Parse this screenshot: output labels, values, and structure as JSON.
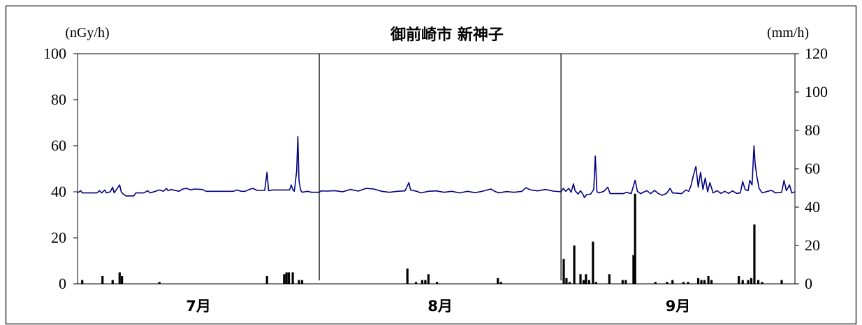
{
  "chart_data": {
    "type": "line",
    "title": "御前崎市 新神子",
    "left_unit": "(nGy/h)",
    "right_unit": "(mm/h)",
    "ylim_left": [
      0,
      100
    ],
    "ylim_right": [
      0,
      120
    ],
    "left_ticks": [
      "0",
      "20",
      "40",
      "60",
      "80",
      "100"
    ],
    "right_ticks": [
      "0",
      "20",
      "40",
      "60",
      "80",
      "100",
      "120"
    ],
    "x_range_days": [
      0,
      92
    ],
    "month_boundaries": [
      31,
      62
    ],
    "months": [
      "7月",
      "8月",
      "9月"
    ],
    "grid": false,
    "colors": {
      "dose_line": "#000080",
      "rain_bars": "#000000"
    },
    "series": [
      {
        "axis": "left",
        "type": "line",
        "points": [
          [
            0.0,
            39.5
          ],
          [
            0.4,
            40.5
          ],
          [
            0.6,
            39.5
          ],
          [
            2.5,
            39.5
          ],
          [
            2.8,
            40.5
          ],
          [
            3.1,
            39.5
          ],
          [
            3.5,
            40.8
          ],
          [
            3.7,
            39.5
          ],
          [
            4.2,
            40.0
          ],
          [
            4.5,
            42.0
          ],
          [
            4.7,
            39.5
          ],
          [
            5.0,
            41.0
          ],
          [
            5.4,
            43.0
          ],
          [
            5.6,
            40.0
          ],
          [
            5.8,
            39.2
          ],
          [
            6.2,
            38.2
          ],
          [
            7.2,
            38.2
          ],
          [
            7.5,
            39.5
          ],
          [
            8.5,
            39.5
          ],
          [
            9.0,
            40.5
          ],
          [
            9.3,
            39.5
          ],
          [
            10.0,
            40.2
          ],
          [
            10.5,
            40.8
          ],
          [
            11.0,
            40.2
          ],
          [
            11.4,
            41.5
          ],
          [
            11.6,
            40.5
          ],
          [
            12.0,
            41.0
          ],
          [
            13.0,
            40.2
          ],
          [
            13.5,
            41.2
          ],
          [
            14.0,
            41.5
          ],
          [
            14.5,
            40.8
          ],
          [
            15.0,
            41.2
          ],
          [
            16.0,
            41.0
          ],
          [
            16.5,
            40.2
          ],
          [
            20.0,
            40.2
          ],
          [
            20.4,
            40.8
          ],
          [
            21.0,
            40.2
          ],
          [
            21.5,
            40.2
          ],
          [
            22.0,
            41.0
          ],
          [
            22.5,
            41.5
          ],
          [
            23.0,
            40.6
          ],
          [
            24.0,
            40.6
          ],
          [
            24.3,
            48.5
          ],
          [
            24.5,
            40.5
          ],
          [
            25.0,
            40.8
          ],
          [
            27.2,
            40.8
          ],
          [
            27.4,
            43.0
          ],
          [
            27.6,
            41.0
          ],
          [
            27.8,
            40.2
          ],
          [
            28.1,
            49.0
          ],
          [
            28.25,
            64.0
          ],
          [
            28.4,
            45.0
          ],
          [
            28.6,
            40.8
          ],
          [
            28.8,
            39.8
          ],
          [
            29.5,
            40.2
          ],
          [
            30.0,
            39.8
          ],
          [
            31.0,
            39.8
          ],
          [
            31.2,
            40.4
          ],
          [
            32.0,
            40.3
          ],
          [
            33.0,
            40.5
          ],
          [
            34.0,
            40.0
          ],
          [
            35.0,
            41.0
          ],
          [
            36.0,
            40.3
          ],
          [
            37.0,
            41.5
          ],
          [
            38.0,
            41.2
          ],
          [
            39.0,
            40.2
          ],
          [
            40.0,
            39.8
          ],
          [
            41.0,
            40.2
          ],
          [
            42.0,
            40.4
          ],
          [
            42.5,
            44.0
          ],
          [
            42.7,
            40.8
          ],
          [
            43.5,
            40.2
          ],
          [
            44.0,
            39.5
          ],
          [
            45.0,
            40.2
          ],
          [
            46.0,
            40.4
          ],
          [
            47.0,
            39.8
          ],
          [
            48.0,
            40.2
          ],
          [
            49.0,
            39.5
          ],
          [
            50.0,
            40.2
          ],
          [
            51.0,
            39.6
          ],
          [
            52.0,
            40.3
          ],
          [
            53.0,
            41.2
          ],
          [
            53.5,
            40.2
          ],
          [
            54.0,
            39.5
          ],
          [
            55.0,
            40.1
          ],
          [
            56.0,
            39.8
          ],
          [
            57.0,
            40.2
          ],
          [
            57.5,
            41.8
          ],
          [
            58.0,
            40.9
          ],
          [
            59.0,
            40.4
          ],
          [
            60.0,
            41.0
          ],
          [
            61.0,
            40.3
          ],
          [
            62.0,
            40.0
          ],
          [
            62.3,
            41.5
          ],
          [
            62.6,
            40.2
          ],
          [
            63.0,
            41.5
          ],
          [
            63.3,
            39.8
          ],
          [
            63.6,
            43.5
          ],
          [
            63.8,
            40.5
          ],
          [
            64.2,
            39.0
          ],
          [
            64.5,
            40.5
          ],
          [
            64.8,
            39.0
          ],
          [
            65.0,
            37.5
          ],
          [
            65.3,
            38.8
          ],
          [
            65.8,
            39.0
          ],
          [
            66.2,
            41.0
          ],
          [
            66.4,
            55.5
          ],
          [
            66.6,
            40.0
          ],
          [
            66.9,
            39.5
          ],
          [
            67.5,
            40.2
          ],
          [
            68.0,
            42.0
          ],
          [
            68.3,
            39.2
          ],
          [
            70.0,
            39.2
          ],
          [
            70.4,
            39.8
          ],
          [
            71.0,
            39.2
          ],
          [
            71.5,
            45.0
          ],
          [
            71.8,
            40.2
          ],
          [
            72.2,
            39.2
          ],
          [
            73.0,
            40.5
          ],
          [
            73.5,
            39.2
          ],
          [
            74.0,
            40.6
          ],
          [
            74.5,
            39.2
          ],
          [
            75.0,
            38.5
          ],
          [
            75.5,
            39.2
          ],
          [
            76.0,
            41.5
          ],
          [
            76.3,
            39.5
          ],
          [
            77.5,
            39.2
          ],
          [
            78.0,
            40.8
          ],
          [
            78.4,
            40.2
          ],
          [
            78.7,
            43.0
          ],
          [
            79.0,
            47.5
          ],
          [
            79.3,
            51.0
          ],
          [
            79.6,
            42.0
          ],
          [
            79.9,
            48.5
          ],
          [
            80.2,
            41.0
          ],
          [
            80.5,
            46.0
          ],
          [
            80.8,
            40.0
          ],
          [
            81.1,
            44.0
          ],
          [
            81.5,
            39.5
          ],
          [
            82.0,
            40.5
          ],
          [
            82.5,
            39.3
          ],
          [
            83.0,
            40.2
          ],
          [
            83.5,
            39.3
          ],
          [
            84.0,
            40.4
          ],
          [
            84.5,
            39.3
          ],
          [
            85.0,
            39.5
          ],
          [
            85.3,
            44.5
          ],
          [
            85.6,
            41.0
          ],
          [
            86.0,
            40.5
          ],
          [
            86.2,
            45.0
          ],
          [
            86.5,
            43.0
          ],
          [
            86.75,
            60.0
          ],
          [
            86.9,
            52.0
          ],
          [
            87.1,
            47.0
          ],
          [
            87.4,
            41.5
          ],
          [
            87.8,
            39.5
          ],
          [
            88.5,
            40.2
          ],
          [
            89.0,
            40.6
          ],
          [
            89.5,
            39.5
          ],
          [
            90.3,
            39.8
          ],
          [
            90.6,
            45.0
          ],
          [
            90.9,
            40.5
          ],
          [
            91.3,
            43.0
          ],
          [
            91.6,
            39.5
          ],
          [
            92.0,
            40.0
          ]
        ]
      },
      {
        "axis": "right",
        "type": "bar",
        "points": [
          [
            0.6,
            2
          ],
          [
            3.2,
            4
          ],
          [
            4.5,
            2
          ],
          [
            5.4,
            6
          ],
          [
            5.7,
            4
          ],
          [
            10.5,
            1
          ],
          [
            24.3,
            4
          ],
          [
            26.5,
            5
          ],
          [
            26.8,
            6
          ],
          [
            27.1,
            6
          ],
          [
            27.6,
            6
          ],
          [
            28.4,
            2
          ],
          [
            28.8,
            2
          ],
          [
            42.3,
            8
          ],
          [
            43.4,
            1
          ],
          [
            44.2,
            2
          ],
          [
            44.6,
            2
          ],
          [
            45.0,
            5
          ],
          [
            46.1,
            1
          ],
          [
            53.9,
            3
          ],
          [
            54.3,
            1
          ],
          [
            62.35,
            13
          ],
          [
            62.7,
            3
          ],
          [
            63.1,
            1
          ],
          [
            63.7,
            20
          ],
          [
            64.5,
            5
          ],
          [
            64.9,
            2
          ],
          [
            65.2,
            5
          ],
          [
            65.6,
            2
          ],
          [
            66.1,
            22
          ],
          [
            66.5,
            1
          ],
          [
            68.2,
            5
          ],
          [
            69.9,
            2
          ],
          [
            70.3,
            2
          ],
          [
            71.3,
            15
          ],
          [
            71.5,
            47
          ],
          [
            74.1,
            1
          ],
          [
            75.6,
            1
          ],
          [
            76.3,
            2
          ],
          [
            77.7,
            1
          ],
          [
            78.3,
            1
          ],
          [
            79.6,
            3
          ],
          [
            80.0,
            2
          ],
          [
            80.4,
            2
          ],
          [
            80.9,
            4
          ],
          [
            81.3,
            2
          ],
          [
            84.8,
            4
          ],
          [
            85.3,
            2
          ],
          [
            86.0,
            2
          ],
          [
            86.4,
            3
          ],
          [
            86.8,
            31
          ],
          [
            87.3,
            2
          ],
          [
            87.8,
            1
          ],
          [
            90.3,
            2
          ]
        ]
      }
    ]
  }
}
